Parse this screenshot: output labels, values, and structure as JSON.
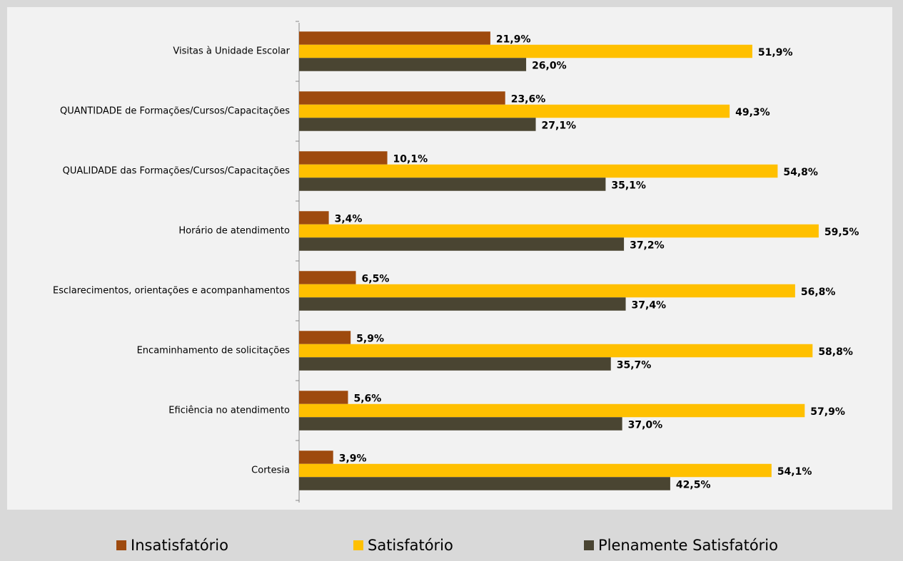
{
  "chart_data": {
    "type": "hbar",
    "categories": [
      "Visitas à Unidade Escolar",
      "QUANTIDADE de Formações/Cursos/Capacitações",
      "QUALIDADE das Formações/Cursos/Capacitações",
      "Horário de atendimento",
      "Esclarecimentos, orientações e acompanhamentos",
      "Encaminhamento de solicitações",
      "Eficiência no atendimento",
      "Cortesia"
    ],
    "series": [
      {
        "name": "Insatisfatório",
        "color": "#9e4a0e",
        "values": [
          21.9,
          23.6,
          10.1,
          3.4,
          6.5,
          5.9,
          5.6,
          3.9
        ],
        "value_labels": [
          "21,9%",
          "23,6%",
          "10,1%",
          "3,4%",
          "6,5%",
          "5,9%",
          "5,6%",
          "3,9%"
        ]
      },
      {
        "name": "Satisfatório",
        "color": "#ffc000",
        "values": [
          51.9,
          49.3,
          54.8,
          59.5,
          56.8,
          58.8,
          57.9,
          54.1
        ],
        "value_labels": [
          "51,9%",
          "49,3%",
          "54,8%",
          "59,5%",
          "56,8%",
          "58,8%",
          "57,9%",
          "54,1%"
        ]
      },
      {
        "name": "Plenamente Satisfatório",
        "color": "#4a4532",
        "values": [
          26.0,
          27.1,
          35.1,
          37.2,
          37.4,
          35.7,
          37.0,
          42.5
        ],
        "value_labels": [
          "26,0%",
          "27,1%",
          "35,1%",
          "37,2%",
          "37,4%",
          "35,7%",
          "37,0%",
          "42,5%"
        ]
      }
    ],
    "xlim": [
      0,
      60
    ],
    "legend": "bottom"
  }
}
